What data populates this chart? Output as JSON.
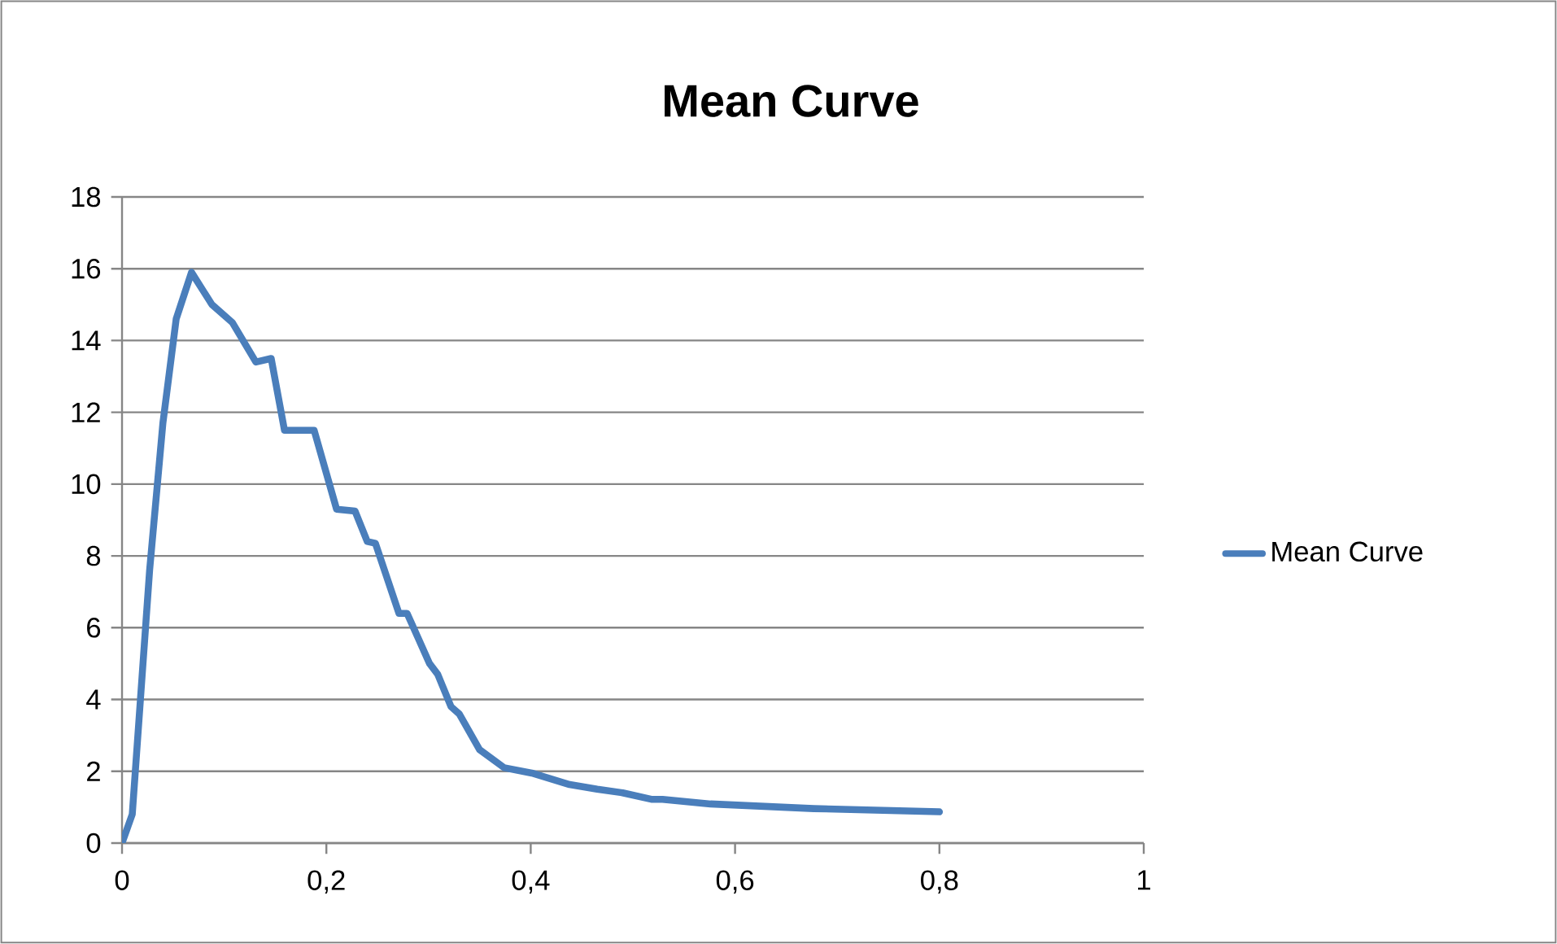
{
  "chart_data": {
    "type": "line",
    "title": "Mean Curve",
    "x": [
      0,
      0.01,
      0.018,
      0.027,
      0.04,
      0.053,
      0.068,
      0.088,
      0.108,
      0.131,
      0.146,
      0.159,
      0.188,
      0.21,
      0.228,
      0.24,
      0.248,
      0.271,
      0.279,
      0.301,
      0.309,
      0.322,
      0.33,
      0.35,
      0.374,
      0.401,
      0.438,
      0.465,
      0.49,
      0.518,
      0.529,
      0.576,
      0.677,
      0.8
    ],
    "series": [
      {
        "name": "Mean Curve",
        "color": "#4a7ebb",
        "values": [
          0,
          0.8,
          4,
          7.6,
          11.7,
          14.6,
          15.9,
          15.0,
          14.5,
          13.4,
          13.5,
          11.5,
          11.5,
          9.3,
          9.25,
          8.4,
          8.35,
          6.4,
          6.4,
          5.0,
          4.7,
          3.8,
          3.6,
          2.6,
          2.1,
          1.95,
          1.63,
          1.5,
          1.4,
          1.22,
          1.22,
          1.09,
          0.96,
          0.87
        ]
      }
    ],
    "xlim": [
      0,
      1
    ],
    "ylim": [
      0,
      18
    ],
    "xticks": [
      0,
      {
        "value": 0.2,
        "label": "0,2"
      },
      {
        "value": 0.4,
        "label": "0,4"
      },
      {
        "value": 0.6,
        "label": "0,6"
      },
      {
        "value": 0.8,
        "label": "0,8"
      },
      1
    ],
    "yticks": [
      0,
      2,
      4,
      6,
      8,
      10,
      12,
      14,
      16,
      18
    ],
    "grid": "y",
    "legend": "right"
  }
}
